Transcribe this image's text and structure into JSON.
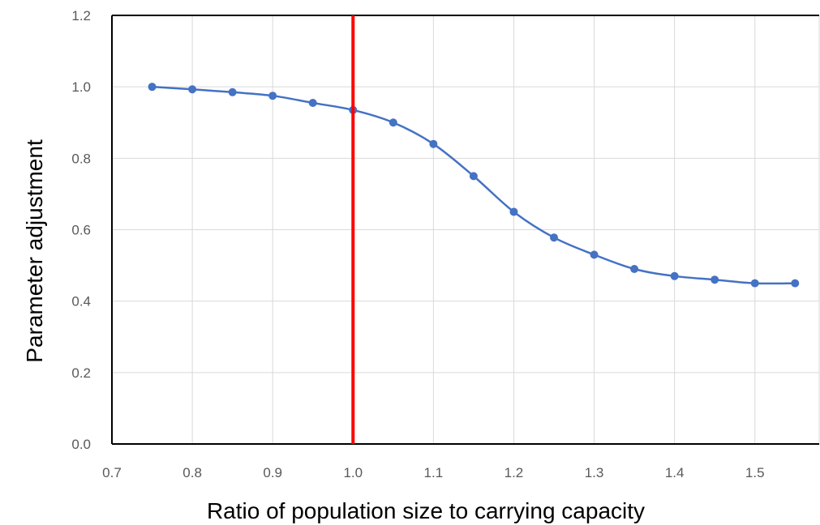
{
  "chart_data": {
    "type": "scatter",
    "title": "",
    "xlabel": "Ratio of population size to carrying capacity",
    "ylabel": "Parameter adjustment",
    "xlim": [
      0.7,
      1.58
    ],
    "ylim": [
      0,
      1.2
    ],
    "xticks": [
      "0.7",
      "0.8",
      "0.9",
      "1.0",
      "1.1",
      "1.2",
      "1.3",
      "1.4",
      "1.5"
    ],
    "yticks": [
      "0.0",
      "0.2",
      "0.4",
      "0.6",
      "0.8",
      "1.0",
      "1.2"
    ],
    "grid": true,
    "legend": "none",
    "series": [
      {
        "color": "#4472C4",
        "style": "smooth-line-with-markers",
        "x": [
          0.75,
          0.8,
          0.85,
          0.9,
          0.95,
          1.0,
          1.05,
          1.1,
          1.15,
          1.2,
          1.25,
          1.3,
          1.35,
          1.4,
          1.45,
          1.5,
          1.55
        ],
        "y": [
          1.0,
          0.993,
          0.985,
          0.975,
          0.955,
          0.935,
          0.9,
          0.84,
          0.75,
          0.65,
          0.578,
          0.53,
          0.49,
          0.47,
          0.46,
          0.45,
          0.45
        ]
      }
    ],
    "reference_line": {
      "x": 1.0,
      "color": "#FF0000"
    }
  }
}
